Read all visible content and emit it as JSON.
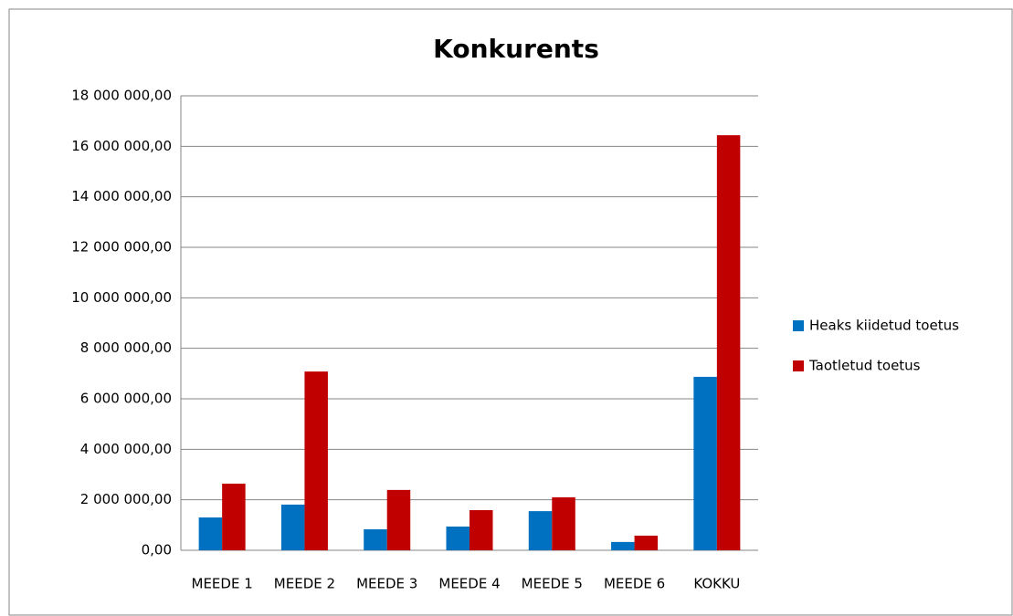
{
  "chart_data": {
    "type": "bar",
    "title": "Konkurents",
    "categories": [
      "MEEDE 1",
      "MEEDE 2",
      "MEEDE 3",
      "MEEDE 4",
      "MEEDE 5",
      "MEEDE 6",
      "KOKKU"
    ],
    "series": [
      {
        "name": "Heaks kiidetud toetus",
        "color": "#0070c0",
        "values": [
          1300000,
          1810000,
          830000,
          940000,
          1550000,
          330000,
          6870000
        ]
      },
      {
        "name": "Taotletud toetus",
        "color": "#c00000",
        "values": [
          2640000,
          7080000,
          2390000,
          1590000,
          2100000,
          580000,
          16440000
        ]
      }
    ],
    "ylim": [
      0,
      18000000
    ],
    "yticks": [
      {
        "value": 0,
        "label": "0,00"
      },
      {
        "value": 2000000,
        "label": "2 000 000,00"
      },
      {
        "value": 4000000,
        "label": "4 000 000,00"
      },
      {
        "value": 6000000,
        "label": "6 000 000,00"
      },
      {
        "value": 8000000,
        "label": "8 000 000,00"
      },
      {
        "value": 10000000,
        "label": "10 000 000,00"
      },
      {
        "value": 12000000,
        "label": "12 000 000,00"
      },
      {
        "value": 14000000,
        "label": "14 000 000,00"
      },
      {
        "value": 16000000,
        "label": "16 000 000,00"
      },
      {
        "value": 18000000,
        "label": "18 000 000,00"
      }
    ],
    "grid": true,
    "legend": "right"
  }
}
